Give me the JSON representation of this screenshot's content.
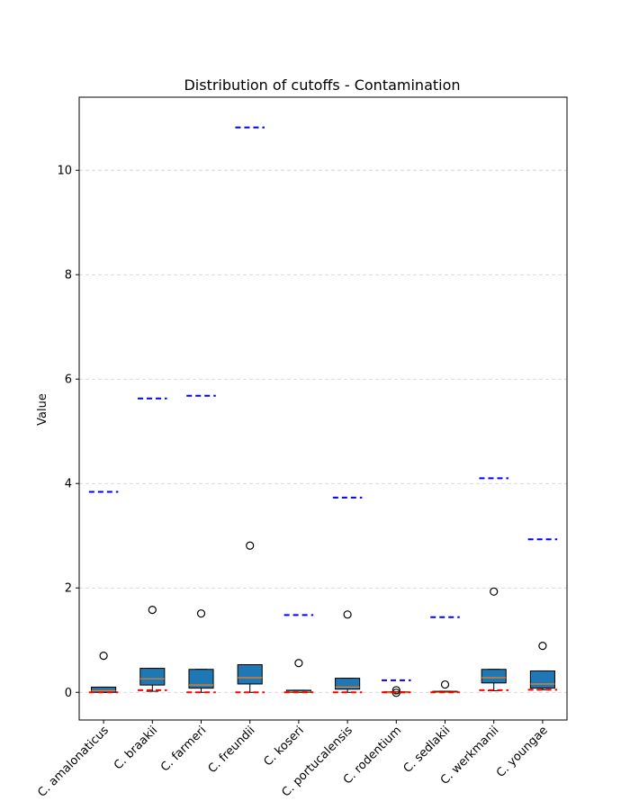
{
  "chart_data": {
    "type": "box",
    "title": "Distribution of cutoffs - Contamination",
    "xlabel": "",
    "ylabel": "Value",
    "ylim": [
      -0.53,
      11.4
    ],
    "yticks": [
      0,
      2,
      4,
      6,
      8,
      10
    ],
    "grid": "y, dashed",
    "categories": [
      "C. amalonaticus",
      "C. braakii",
      "C. farmeri",
      "C. freundii",
      "C. koseri",
      "C. portucalensis",
      "C. rodentium",
      "C. sedlakii",
      "C. werkmanii",
      "C. youngae"
    ],
    "boxes": [
      {
        "q1": 0.0,
        "median": 0.03,
        "q3": 0.1,
        "whisker_low": 0.0,
        "whisker_high": 0.1,
        "outliers": [
          0.7
        ]
      },
      {
        "q1": 0.14,
        "median": 0.26,
        "q3": 0.46,
        "whisker_low": 0.02,
        "whisker_high": 0.46,
        "outliers": [
          1.58
        ]
      },
      {
        "q1": 0.08,
        "median": 0.14,
        "q3": 0.44,
        "whisker_low": 0.0,
        "whisker_high": 0.44,
        "outliers": [
          1.51
        ]
      },
      {
        "q1": 0.16,
        "median": 0.28,
        "q3": 0.53,
        "whisker_low": 0.0,
        "whisker_high": 0.53,
        "outliers": [
          2.81
        ]
      },
      {
        "q1": 0.0,
        "median": 0.01,
        "q3": 0.04,
        "whisker_low": 0.0,
        "whisker_high": 0.04,
        "outliers": [
          0.56
        ]
      },
      {
        "q1": 0.06,
        "median": 0.1,
        "q3": 0.27,
        "whisker_low": 0.0,
        "whisker_high": 0.27,
        "outliers": [
          1.49
        ]
      },
      {
        "q1": 0.0,
        "median": 0.0,
        "q3": 0.01,
        "whisker_low": 0.0,
        "whisker_high": 0.01,
        "outliers": [
          0.04,
          -0.01
        ]
      },
      {
        "q1": 0.0,
        "median": 0.0,
        "q3": 0.02,
        "whisker_low": 0.0,
        "whisker_high": 0.02,
        "outliers": [
          0.15
        ]
      },
      {
        "q1": 0.18,
        "median": 0.28,
        "q3": 0.44,
        "whisker_low": 0.03,
        "whisker_high": 0.44,
        "outliers": [
          1.93
        ]
      },
      {
        "q1": 0.08,
        "median": 0.16,
        "q3": 0.41,
        "whisker_low": 0.05,
        "whisker_high": 0.41,
        "outliers": [
          0.89
        ]
      }
    ],
    "upper_cutoffs": [
      3.84,
      5.63,
      5.68,
      10.82,
      1.48,
      3.73,
      0.23,
      1.44,
      4.1,
      2.93
    ],
    "lower_cutoffs": [
      0.0,
      0.04,
      0.0,
      0.0,
      0.0,
      0.0,
      0.0,
      0.0,
      0.04,
      0.05
    ],
    "colors": {
      "box_fill": "#1f77b4",
      "median": "#ff7f0e",
      "upper_cutoff": "#0000ff",
      "lower_cutoff": "#ff0000",
      "grid": "#cccccc"
    }
  }
}
